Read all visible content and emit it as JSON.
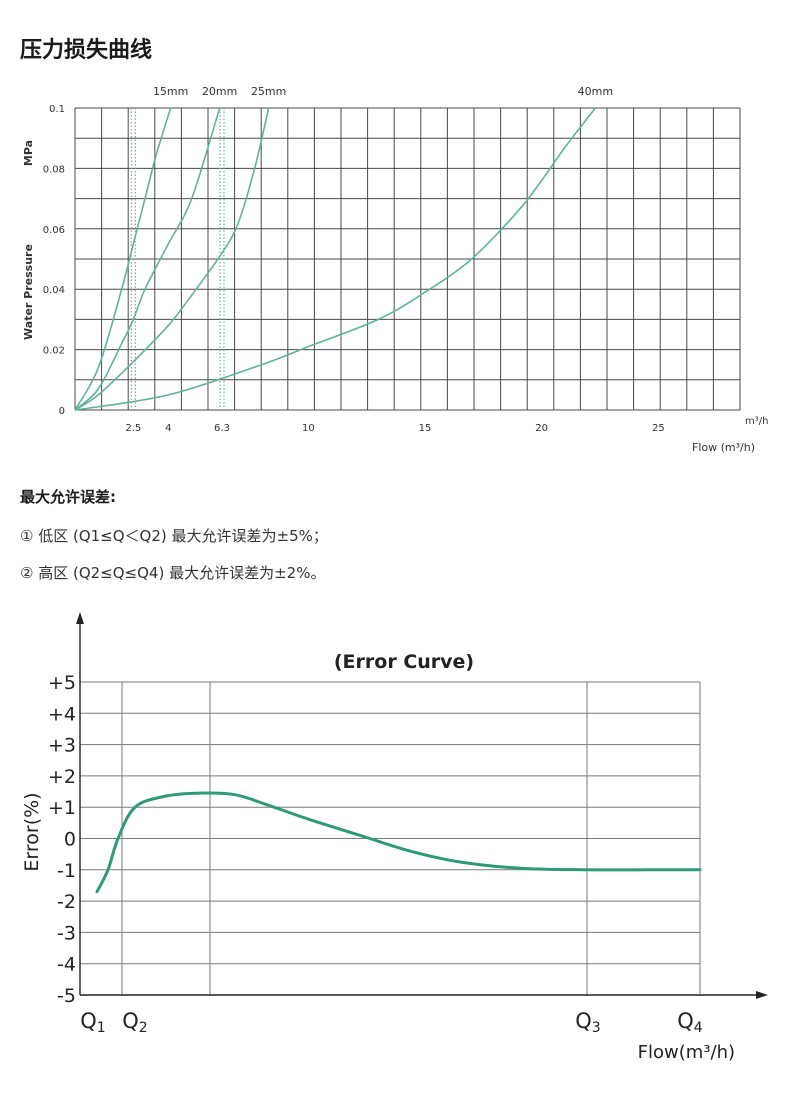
{
  "page_title": "压力损失曲线",
  "max_error": {
    "heading": "最大允许误差:",
    "lines": [
      "① 低区 (Q1≤Q＜Q2) 最大允许误差为±5%；",
      "② 高区 (Q2≤Q≤Q4) 最大允许误差为±2%。"
    ]
  },
  "chart_data": [
    {
      "type": "line",
      "title": "",
      "ylabel": "Water Pressure",
      "ylabel_unit": "MPa",
      "xlabel": "Flow (m³/h)",
      "x_unit_label": "m³/h",
      "xlim": [
        0,
        28.5
      ],
      "ylim": [
        0,
        0.1
      ],
      "y_ticks": [
        "0",
        "0.02",
        "0.04",
        "0.06",
        "0.08",
        "0.1"
      ],
      "y_tick_values": [
        0,
        0.02,
        0.04,
        0.06,
        0.08,
        0.1
      ],
      "x_ticks": [
        "2.5",
        "4",
        "6.3",
        "10",
        "15",
        "20",
        "25"
      ],
      "x_tick_values": [
        2.5,
        4,
        6.3,
        10,
        15,
        20,
        25
      ],
      "grid": true,
      "line_color": "#5fb39a",
      "reference_lines": [
        {
          "x": 2.5,
          "style": "dotted"
        },
        {
          "x": 6.3,
          "style": "dotted"
        }
      ],
      "series": [
        {
          "name": "15mm",
          "x": [
            0,
            1,
            2,
            2.5,
            3,
            3.5,
            4.1
          ],
          "y": [
            0,
            0.014,
            0.04,
            0.055,
            0.07,
            0.085,
            0.1
          ]
        },
        {
          "name": "20mm",
          "x": [
            0,
            1,
            2,
            2.5,
            3,
            4,
            5,
            6.2
          ],
          "y": [
            0,
            0.007,
            0.022,
            0.03,
            0.04,
            0.055,
            0.07,
            0.1
          ]
        },
        {
          "name": "25mm",
          "x": [
            0,
            1,
            2.5,
            4,
            5,
            6.3,
            7,
            7.7,
            8.3
          ],
          "y": [
            0,
            0.005,
            0.016,
            0.028,
            0.038,
            0.052,
            0.062,
            0.08,
            0.1
          ]
        },
        {
          "name": "40mm",
          "x": [
            0,
            4,
            8,
            10,
            13,
            15,
            17,
            19,
            20,
            21,
            22.3
          ],
          "y": [
            0,
            0.005,
            0.015,
            0.021,
            0.03,
            0.039,
            0.05,
            0.066,
            0.076,
            0.087,
            0.1
          ]
        }
      ]
    },
    {
      "type": "line",
      "title": "(Error Curve)",
      "ylabel": "Error(%)",
      "xlabel": "Flow(m³/h)",
      "ylim": [
        -5,
        5
      ],
      "y_ticks": [
        "+5",
        "+4",
        "+3",
        "+2",
        "+1",
        "0",
        "-1",
        "-2",
        "-3",
        "-4",
        "-5"
      ],
      "y_tick_values": [
        5,
        4,
        3,
        2,
        1,
        0,
        -1,
        -2,
        -3,
        -4,
        -5
      ],
      "x_ticks": [
        "Q1",
        "Q2",
        "Q3",
        "Q4"
      ],
      "grid": true,
      "line_color": "#2e9a78",
      "series": [
        {
          "values": [
            -1.7,
            -1,
            0,
            1,
            1.35,
            1.45,
            1.4,
            1.1,
            0.6,
            0.1,
            -0.4,
            -0.75,
            -0.95,
            -1,
            -1,
            -1
          ]
        }
      ]
    }
  ]
}
